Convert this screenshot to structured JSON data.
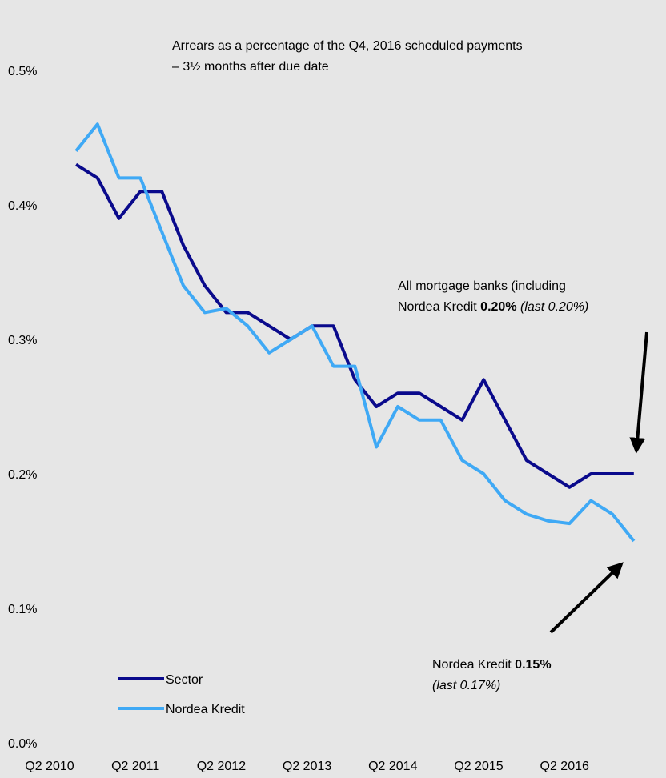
{
  "chart_data": {
    "type": "line",
    "title": [
      "Arrears as a percentage of the Q4, 2016 scheduled payments",
      "– 3½ months after due date"
    ],
    "categories": [
      "Q2 2010",
      null,
      null,
      null,
      "Q2 2011",
      null,
      null,
      null,
      "Q2 2012",
      null,
      null,
      null,
      "Q2 2013",
      null,
      null,
      null,
      "Q2 2014",
      null,
      null,
      null,
      "Q2 2015",
      null,
      null,
      null,
      "Q2 2016",
      null,
      null
    ],
    "series": [
      {
        "name": "Sector",
        "color": "#0a0a8c",
        "values": [
          0.43,
          0.42,
          0.39,
          0.41,
          0.41,
          0.37,
          0.34,
          0.32,
          0.32,
          0.31,
          0.3,
          0.31,
          0.31,
          0.27,
          0.25,
          0.26,
          0.26,
          0.25,
          0.24,
          0.27,
          0.24,
          0.21,
          0.2,
          0.19,
          0.2,
          0.2,
          0.2
        ]
      },
      {
        "name": "Nordea Kredit",
        "color": "#3fa9f5",
        "values": [
          0.44,
          0.46,
          0.42,
          0.42,
          0.38,
          0.34,
          0.32,
          0.323,
          0.31,
          0.29,
          0.3,
          0.31,
          0.28,
          0.28,
          0.22,
          0.25,
          0.24,
          0.24,
          0.21,
          0.2,
          0.18,
          0.17,
          0.165,
          0.163,
          0.18,
          0.17,
          0.15
        ]
      }
    ],
    "ylim": [
      0,
      0.5
    ],
    "yticks": [
      {
        "value": 0,
        "label": "0.0%"
      },
      {
        "value": 0.1,
        "label": "0.1%"
      },
      {
        "value": 0.2,
        "label": "0.2%"
      },
      {
        "value": 0.3,
        "label": "0.3%"
      },
      {
        "value": 0.4,
        "label": "0.4%"
      },
      {
        "value": 0.5,
        "label": "0.5%"
      }
    ],
    "grid": false,
    "legend": "lower left",
    "annotations": [
      {
        "lines": [
          [
            {
              "text": "All mortgage banks (including"
            }
          ],
          [
            {
              "text": "Nordea Kredit "
            },
            {
              "text": "0.20%",
              "bold": true
            },
            {
              "text": " (last 0.20%)",
              "italic": true
            }
          ]
        ]
      },
      {
        "lines": [
          [
            {
              "text": "Nordea Kredit "
            },
            {
              "text": "0.15%",
              "bold": true
            }
          ],
          [
            {
              "text": "(last 0.17%)",
              "italic": true
            }
          ]
        ]
      }
    ]
  }
}
